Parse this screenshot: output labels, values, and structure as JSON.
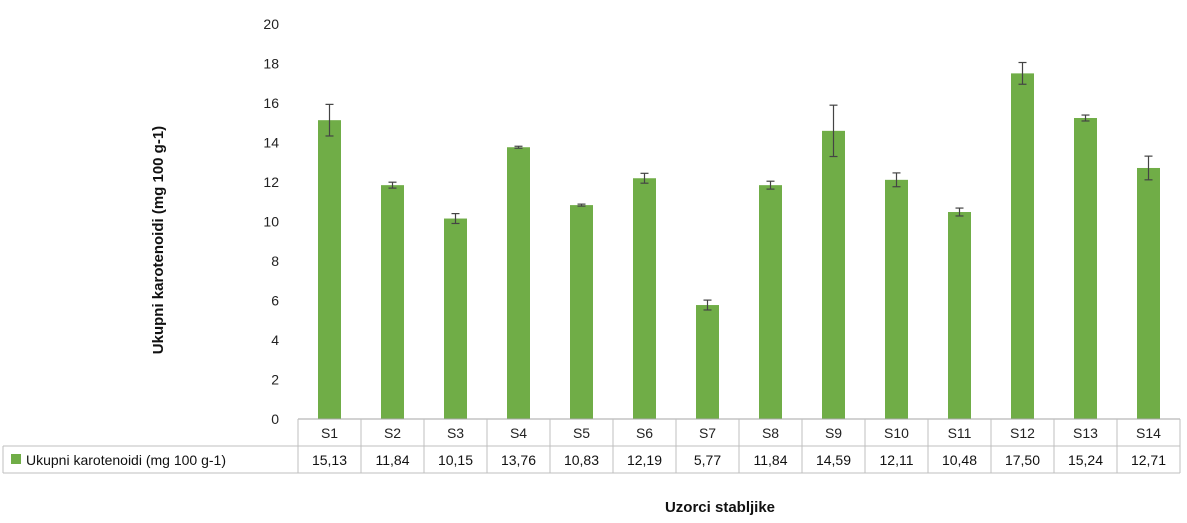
{
  "chart_data": {
    "type": "bar",
    "title": "",
    "xlabel": "Uzorci stabljike",
    "ylabel": "Ukupni karotenoidi (mg 100 g-1)",
    "ylim": [
      0,
      20
    ],
    "yticks": [
      0,
      2,
      4,
      6,
      8,
      10,
      12,
      14,
      16,
      18,
      20
    ],
    "categories": [
      "S1",
      "S2",
      "S3",
      "S4",
      "S5",
      "S6",
      "S7",
      "S8",
      "S9",
      "S10",
      "S11",
      "S12",
      "S13",
      "S14"
    ],
    "series": [
      {
        "name": "Ukupni karotenoidi (mg 100 g-1)",
        "values": [
          15.13,
          11.84,
          10.15,
          13.76,
          10.83,
          12.19,
          5.77,
          11.84,
          14.59,
          12.11,
          10.48,
          17.5,
          15.24,
          12.71
        ],
        "value_labels": [
          "15,13",
          "11,84",
          "10,15",
          "13,76",
          "10,83",
          "12,19",
          "5,77",
          "11,84",
          "14,59",
          "12,11",
          "10,48",
          "17,50",
          "15,24",
          "12,71"
        ],
        "errors": [
          0.8,
          0.15,
          0.25,
          0.05,
          0.05,
          0.25,
          0.25,
          0.2,
          1.3,
          0.35,
          0.2,
          0.55,
          0.15,
          0.6
        ],
        "color": "#70ad47"
      }
    ],
    "grid": false,
    "legend": "data-table"
  }
}
